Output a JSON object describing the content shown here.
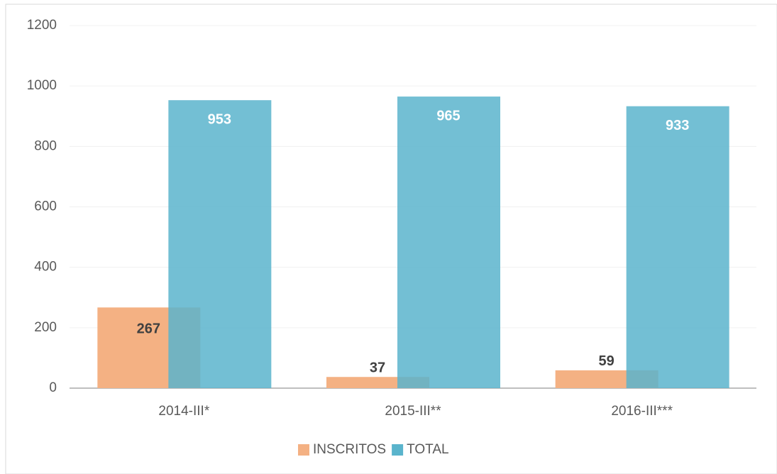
{
  "chart_data": {
    "type": "bar",
    "categories": [
      "2014-III*",
      "2015-III**",
      "2016-III***"
    ],
    "series": [
      {
        "name": "INSCRITOS",
        "color": "#f4b183",
        "values": [
          267,
          37,
          59
        ]
      },
      {
        "name": "TOTAL",
        "color": "#5ab4cc",
        "values": [
          953,
          965,
          933
        ]
      }
    ],
    "ylim": [
      0,
      1200
    ],
    "yticks": [
      0,
      200,
      400,
      600,
      800,
      1000,
      1200
    ],
    "grid": true,
    "legend": "bottom"
  }
}
